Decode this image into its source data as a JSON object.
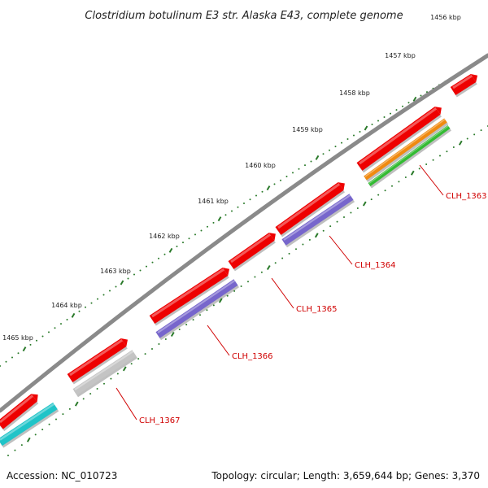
{
  "title": "Clostridium botulinum E3 str. Alaska E43, complete genome",
  "accession": "Accession: NC_010723",
  "summary": "Topology: circular; Length: 3,659,644 bp; Genes: 3,370",
  "colors": {
    "backbone": "#8a8a8a",
    "tick": "#2a7a2a",
    "label": "#d00000",
    "cds": "#ee0000",
    "purple": "#7766cc",
    "orange": "#f08a10",
    "green": "#33bb33",
    "gray": "#c4c4c4",
    "cyan": "#20c4c8"
  },
  "scale_labels": [
    "1456 kbp",
    "1457 kbp",
    "1458 kbp",
    "1459 kbp",
    "1460 kbp",
    "1461 kbp",
    "1462 kbp",
    "1463 kbp",
    "1464 kbp",
    "1465 kbp"
  ],
  "gene_labels": [
    "CLH_1363",
    "CLH_1364",
    "CLH_1365",
    "CLH_1366",
    "CLH_1367"
  ]
}
